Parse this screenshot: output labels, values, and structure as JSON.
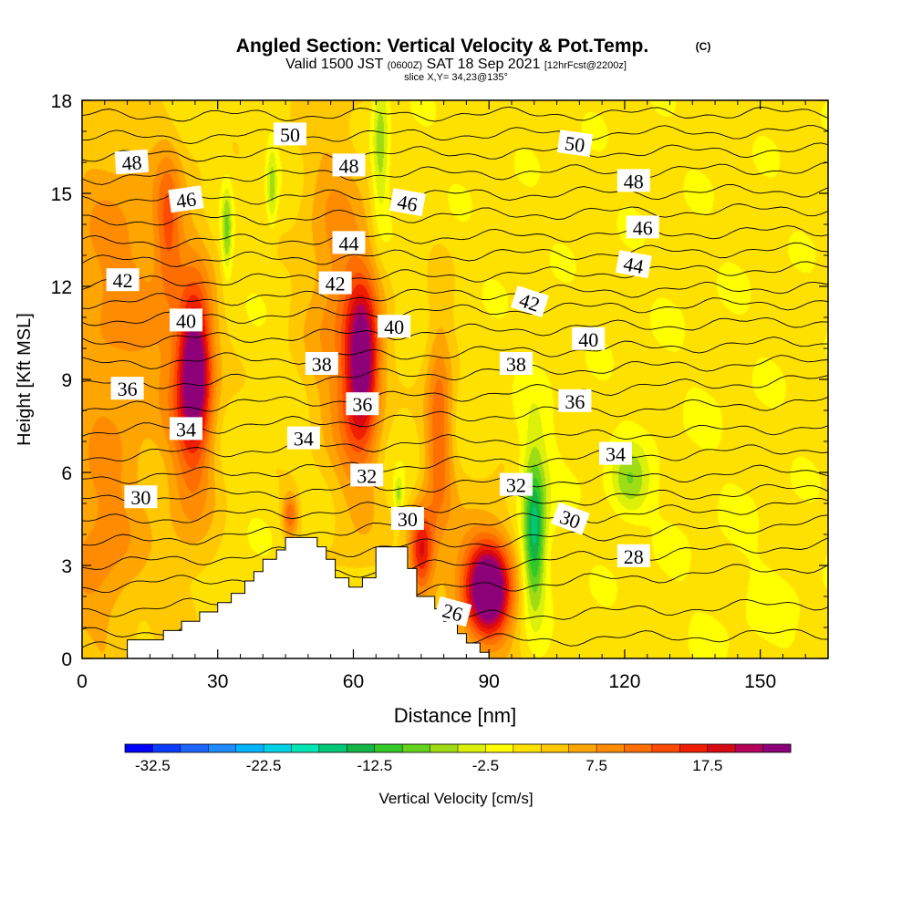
{
  "chart_data": {
    "type": "heatmap",
    "title": "Angled Section: Vertical Velocity & Pot.Temp.",
    "title_suffix": "(C)",
    "subtitle_parts": [
      "Valid 1500 JST",
      "(0600Z)",
      "SAT 18 Sep 2021",
      "[12hrFcst@2200z]"
    ],
    "slice_label": "slice X,Y= 34,23@135°",
    "xlabel": "Distance [nm]",
    "ylabel": "Height [Kft MSL]",
    "xlim": [
      0,
      165
    ],
    "ylim": [
      0,
      18
    ],
    "x_ticks": [
      "0",
      "30",
      "60",
      "90",
      "120",
      "150"
    ],
    "y_ticks": [
      "0",
      "3",
      "6",
      "9",
      "12",
      "15",
      "18"
    ],
    "colorbar": {
      "label": "Vertical Velocity [cm/s]",
      "tick_labels": [
        "-32.5",
        "-22.5",
        "-12.5",
        "-2.5",
        "7.5",
        "17.5"
      ],
      "range": [
        -35,
        25
      ],
      "step": 2.5,
      "colors": [
        "#0000ff",
        "#0a3cff",
        "#1e64ff",
        "#1e8cff",
        "#00b4ff",
        "#00d2e6",
        "#00e6b4",
        "#00c878",
        "#14b446",
        "#32c828",
        "#64d21e",
        "#a0dc14",
        "#dcf00a",
        "#ffff00",
        "#ffe100",
        "#ffc800",
        "#ffa500",
        "#ff8c00",
        "#ff6e00",
        "#ff4b00",
        "#f01e00",
        "#d70a14",
        "#b4005a",
        "#8c0078"
      ]
    },
    "background_value": 1.0,
    "terrain": [
      [
        0,
        0
      ],
      [
        10,
        0
      ],
      [
        10,
        0.6
      ],
      [
        18,
        0.6
      ],
      [
        18,
        0.9
      ],
      [
        22,
        0.9
      ],
      [
        22,
        1.2
      ],
      [
        26,
        1.2
      ],
      [
        26,
        1.5
      ],
      [
        30,
        1.5
      ],
      [
        30,
        1.8
      ],
      [
        33,
        1.8
      ],
      [
        33,
        2.1
      ],
      [
        36,
        2.1
      ],
      [
        36,
        2.5
      ],
      [
        38,
        2.5
      ],
      [
        38,
        2.8
      ],
      [
        40,
        2.8
      ],
      [
        40,
        3.2
      ],
      [
        43,
        3.2
      ],
      [
        43,
        3.5
      ],
      [
        45,
        3.5
      ],
      [
        45,
        3.9
      ],
      [
        52,
        3.9
      ],
      [
        52,
        3.6
      ],
      [
        54,
        3.6
      ],
      [
        54,
        3.2
      ],
      [
        56,
        3.2
      ],
      [
        56,
        2.6
      ],
      [
        59,
        2.6
      ],
      [
        59,
        2.3
      ],
      [
        62,
        2.3
      ],
      [
        62,
        2.6
      ],
      [
        65,
        2.6
      ],
      [
        65,
        3.6
      ],
      [
        72,
        3.6
      ],
      [
        72,
        2.9
      ],
      [
        74,
        2.9
      ],
      [
        74,
        2.0
      ],
      [
        78,
        2.0
      ],
      [
        78,
        1.6
      ],
      [
        80,
        1.6
      ],
      [
        80,
        1.2
      ],
      [
        83,
        1.2
      ],
      [
        83,
        0.8
      ],
      [
        85,
        0.8
      ],
      [
        85,
        0.5
      ],
      [
        88,
        0.5
      ],
      [
        88,
        0.2
      ],
      [
        90,
        0.2
      ],
      [
        90,
        0
      ],
      [
        165,
        0
      ]
    ],
    "velocity_cells": [
      {
        "x": 8,
        "z": 12,
        "sx": 10,
        "sz": 4,
        "v": 7.5
      },
      {
        "x": 25,
        "z": 9.3,
        "sx": 2.4,
        "sz": 1.6,
        "v": 20
      },
      {
        "x": 24,
        "z": 8.0,
        "sx": 4,
        "sz": 3.5,
        "v": 9
      },
      {
        "x": 19,
        "z": 14.0,
        "sx": 2,
        "sz": 1.6,
        "v": 8
      },
      {
        "x": 32,
        "z": 13.8,
        "sx": 0.8,
        "sz": 1.0,
        "v": -9
      },
      {
        "x": 42,
        "z": 15.2,
        "sx": 0.8,
        "sz": 0.9,
        "v": -7
      },
      {
        "x": 66,
        "z": 16.6,
        "sx": 1.3,
        "sz": 1.8,
        "v": -8
      },
      {
        "x": 62,
        "z": 9.6,
        "sx": 2.4,
        "sz": 1.6,
        "v": 19
      },
      {
        "x": 61,
        "z": 8.8,
        "sx": 4,
        "sz": 3.5,
        "v": 8
      },
      {
        "x": 79,
        "z": 7.5,
        "sx": 2.2,
        "sz": 2.5,
        "v": 11
      },
      {
        "x": 75,
        "z": 3.5,
        "sx": 2,
        "sz": 1.0,
        "v": 17
      },
      {
        "x": 90,
        "z": 2.2,
        "sx": 3.2,
        "sz": 1.0,
        "v": 22
      },
      {
        "x": 89,
        "z": 2.5,
        "sx": 6,
        "sz": 1.8,
        "v": 9
      },
      {
        "x": 100,
        "z": 4.0,
        "sx": 1.6,
        "sz": 1.6,
        "v": -14
      },
      {
        "x": 100,
        "z": 4.8,
        "sx": 3,
        "sz": 2.4,
        "v": -5
      },
      {
        "x": 121,
        "z": 5.7,
        "sx": 3,
        "sz": 0.8,
        "v": -8
      },
      {
        "x": 46,
        "z": 4.6,
        "sx": 1.2,
        "sz": 0.5,
        "v": 11
      },
      {
        "x": 70,
        "z": 5.3,
        "sx": 0.7,
        "sz": 0.4,
        "v": -7
      },
      {
        "x": 4,
        "z": 3.6,
        "sx": 7,
        "sz": 2.6,
        "v": 7
      },
      {
        "x": 152,
        "z": 1.8,
        "sx": 10,
        "sz": 1.5,
        "v": -1
      },
      {
        "x": 138,
        "z": 7,
        "sx": 12,
        "sz": 5,
        "v": -0.5
      },
      {
        "x": 55,
        "z": 12.5,
        "sx": 5,
        "sz": 4,
        "v": 6
      }
    ],
    "isotherms": [
      {
        "theta": 26,
        "z0": 0.3,
        "z1": 0.8
      },
      {
        "theta": 27,
        "z0": 0.8,
        "z1": 1.8
      },
      {
        "theta": 28,
        "z0": 1.5,
        "z1": 3.0
      },
      {
        "theta": 29,
        "z0": 2.3,
        "z1": 3.7
      },
      {
        "theta": 30,
        "z0": 3.0,
        "z1": 4.4
      },
      {
        "theta": 31,
        "z0": 3.7,
        "z1": 5.0
      },
      {
        "theta": 32,
        "z0": 4.4,
        "z1": 5.5
      },
      {
        "theta": 33,
        "z0": 5.1,
        "z1": 6.1
      },
      {
        "theta": 34,
        "z0": 5.8,
        "z1": 6.8
      },
      {
        "theta": 35,
        "z0": 6.5,
        "z1": 7.5
      },
      {
        "theta": 36,
        "z0": 7.3,
        "z1": 8.3
      },
      {
        "theta": 37,
        "z0": 8.0,
        "z1": 9.0
      },
      {
        "theta": 38,
        "z0": 8.8,
        "z1": 9.6
      },
      {
        "theta": 39,
        "z0": 9.5,
        "z1": 10.2
      },
      {
        "theta": 40,
        "z0": 10.2,
        "z1": 10.9
      },
      {
        "theta": 41,
        "z0": 10.9,
        "z1": 11.5
      },
      {
        "theta": 42,
        "z0": 11.5,
        "z1": 12.0
      },
      {
        "theta": 43,
        "z0": 12.1,
        "z1": 12.6
      },
      {
        "theta": 44,
        "z0": 12.8,
        "z1": 13.2
      },
      {
        "theta": 45,
        "z0": 13.4,
        "z1": 13.8
      },
      {
        "theta": 46,
        "z0": 14.1,
        "z1": 14.5
      },
      {
        "theta": 47,
        "z0": 14.8,
        "z1": 15.1
      },
      {
        "theta": 48,
        "z0": 15.5,
        "z1": 15.8
      },
      {
        "theta": 49,
        "z0": 16.2,
        "z1": 16.4
      },
      {
        "theta": 50,
        "z0": 16.8,
        "z1": 17.0
      },
      {
        "theta": 51,
        "z0": 17.5,
        "z1": 17.6
      }
    ],
    "isotherm_labels": [
      {
        "text": "48",
        "x": 11,
        "z": 16.0,
        "angle": -4
      },
      {
        "text": "50",
        "x": 46,
        "z": 16.9,
        "angle": 0
      },
      {
        "text": "48",
        "x": 59,
        "z": 15.9,
        "angle": 0
      },
      {
        "text": "50",
        "x": 109,
        "z": 16.6,
        "angle": 8
      },
      {
        "text": "46",
        "x": 23,
        "z": 14.8,
        "angle": -8
      },
      {
        "text": "46",
        "x": 72,
        "z": 14.7,
        "angle": 10
      },
      {
        "text": "48",
        "x": 122,
        "z": 15.4,
        "angle": 0
      },
      {
        "text": "44",
        "x": 59,
        "z": 13.4,
        "angle": 0
      },
      {
        "text": "46",
        "x": 124,
        "z": 13.9,
        "angle": 0
      },
      {
        "text": "44",
        "x": 122,
        "z": 12.7,
        "angle": 10
      },
      {
        "text": "42",
        "x": 9,
        "z": 12.2,
        "angle": 0
      },
      {
        "text": "42",
        "x": 56,
        "z": 12.1,
        "angle": 0
      },
      {
        "text": "42",
        "x": 99,
        "z": 11.5,
        "angle": 18
      },
      {
        "text": "40",
        "x": 23,
        "z": 10.9,
        "angle": 0
      },
      {
        "text": "40",
        "x": 69,
        "z": 10.7,
        "angle": 0
      },
      {
        "text": "40",
        "x": 112,
        "z": 10.3,
        "angle": 0
      },
      {
        "text": "38",
        "x": 53,
        "z": 9.5,
        "angle": 0
      },
      {
        "text": "38",
        "x": 96,
        "z": 9.5,
        "angle": 0
      },
      {
        "text": "36",
        "x": 10,
        "z": 8.7,
        "angle": 0
      },
      {
        "text": "36",
        "x": 62,
        "z": 8.2,
        "angle": 0
      },
      {
        "text": "36",
        "x": 109,
        "z": 8.3,
        "angle": 0
      },
      {
        "text": "34",
        "x": 23,
        "z": 7.4,
        "angle": 0
      },
      {
        "text": "34",
        "x": 49,
        "z": 7.1,
        "angle": 0
      },
      {
        "text": "34",
        "x": 118,
        "z": 6.6,
        "angle": 0
      },
      {
        "text": "32",
        "x": 63,
        "z": 5.9,
        "angle": 0
      },
      {
        "text": "32",
        "x": 96,
        "z": 5.6,
        "angle": 0
      },
      {
        "text": "30",
        "x": 13,
        "z": 5.2,
        "angle": 0
      },
      {
        "text": "30",
        "x": 72,
        "z": 4.5,
        "angle": 0
      },
      {
        "text": "30",
        "x": 108,
        "z": 4.5,
        "angle": 20
      },
      {
        "text": "28",
        "x": 122,
        "z": 3.3,
        "angle": 0
      },
      {
        "text": "26",
        "x": 82,
        "z": 1.5,
        "angle": 15
      }
    ]
  }
}
